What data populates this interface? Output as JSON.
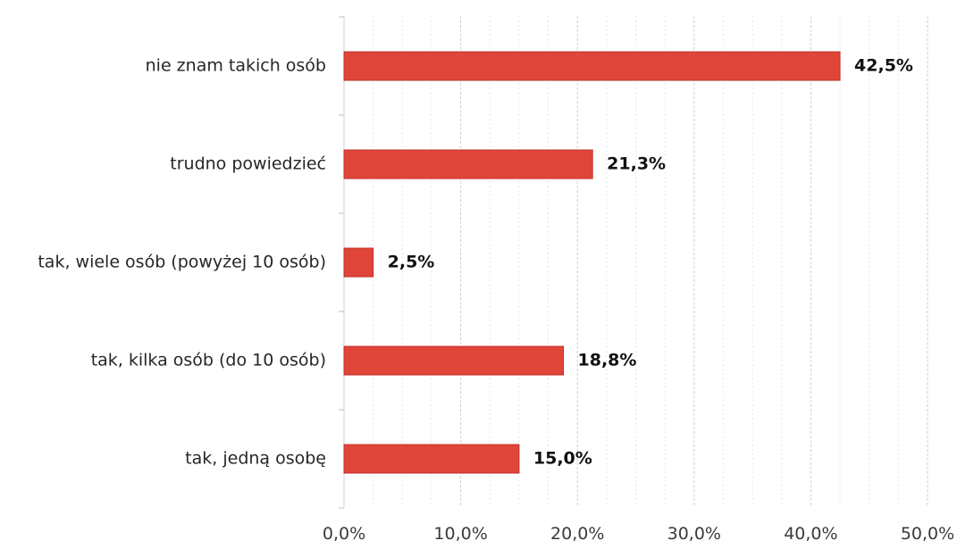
{
  "chart_data": {
    "type": "bar",
    "orientation": "horizontal",
    "categories": [
      "nie znam takich osób",
      "trudno powiedzieć",
      "tak, wiele osób (powyżej 10 osób)",
      "tak, kilka osób (do 10 osób)",
      "tak, jedną osobę"
    ],
    "values": [
      42.5,
      21.3,
      2.5,
      18.8,
      15.0
    ],
    "value_labels": [
      "42,5%",
      "21,3%",
      "2,5%",
      "18,8%",
      "15,0%"
    ],
    "x_ticks": [
      "0,0%",
      "10,0%",
      "20,0%",
      "30,0%",
      "40,0%",
      "50,0%"
    ],
    "xlim": [
      0,
      50
    ],
    "grid": true,
    "bar_color": "#e0453a",
    "bar_edge_color": "#c0302a",
    "title": "",
    "xlabel": "",
    "ylabel": ""
  }
}
